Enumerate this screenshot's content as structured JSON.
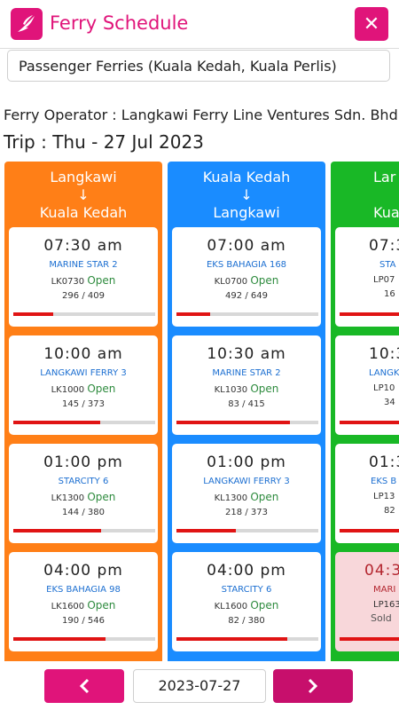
{
  "app": {
    "title": "Ferry Schedule",
    "close_icon": "close-icon"
  },
  "category": {
    "value": "Passenger Ferries (Kuala Kedah, Kuala Perlis)"
  },
  "operator": "Ferry Operator : Langkawi Ferry Line Ventures Sdn. Bhd",
  "trip": "Trip : Thu - 27 Jul 2023",
  "colors": {
    "accent": "#e0147a",
    "orange": "#ff7f17",
    "blue": "#1a8cff",
    "green": "#19b826",
    "open": "#2e8b3e"
  },
  "routes": [
    {
      "from": "Langkawi",
      "arrow": "↓",
      "to": "Kuala Kedah",
      "trips": [
        {
          "time": "07:30 am",
          "vessel": "MARINE STAR 2",
          "code": "LK0730",
          "status": "Open",
          "seats": "296 / 409",
          "load": 0.28
        },
        {
          "time": "10:00 am",
          "vessel": "LANGKAWI FERRY 3",
          "code": "LK1000",
          "status": "Open",
          "seats": "145 / 373",
          "load": 0.61
        },
        {
          "time": "01:00 pm",
          "vessel": "STARCITY 6",
          "code": "LK1300",
          "status": "Open",
          "seats": "144 / 380",
          "load": 0.62
        },
        {
          "time": "04:00 pm",
          "vessel": "EKS BAHAGIA 98",
          "code": "LK1600",
          "status": "Open",
          "seats": "190 / 546",
          "load": 0.65
        }
      ]
    },
    {
      "from": "Kuala Kedah",
      "arrow": "↓",
      "to": "Langkawi",
      "trips": [
        {
          "time": "07:00 am",
          "vessel": "EKS BAHAGIA 168",
          "code": "KL0700",
          "status": "Open",
          "seats": "492 / 649",
          "load": 0.24
        },
        {
          "time": "10:30 am",
          "vessel": "MARINE STAR 2",
          "code": "KL1030",
          "status": "Open",
          "seats": "83 / 415",
          "load": 0.8
        },
        {
          "time": "01:00 pm",
          "vessel": "LANGKAWI FERRY 3",
          "code": "KL1300",
          "status": "Open",
          "seats": "218 / 373",
          "load": 0.42
        },
        {
          "time": "04:00 pm",
          "vessel": "STARCITY 6",
          "code": "KL1600",
          "status": "Open",
          "seats": "82 / 380",
          "load": 0.78
        }
      ]
    },
    {
      "from": "Lar",
      "arrow": "",
      "to": "Kual",
      "trips": [
        {
          "time": "07:3",
          "vessel": "STA",
          "code": "LP07",
          "status": "",
          "seats": "16",
          "load": 0.6
        },
        {
          "time": "10:3",
          "vessel": "LANGK",
          "code": "LP10",
          "status": "",
          "seats": "34",
          "load": 0.6
        },
        {
          "time": "01:3",
          "vessel": "EKS B",
          "code": "LP13",
          "status": "",
          "seats": "82",
          "load": 0.6
        },
        {
          "time": "04:3",
          "vessel": "MARI",
          "code": "LP163",
          "status": "Sold",
          "seats": "",
          "load": 1.0,
          "soldout": true
        }
      ]
    }
  ],
  "footer": {
    "date": "2023-07-27",
    "prev_icon": "chevron-left-icon",
    "next_icon": "chevron-right-icon"
  }
}
